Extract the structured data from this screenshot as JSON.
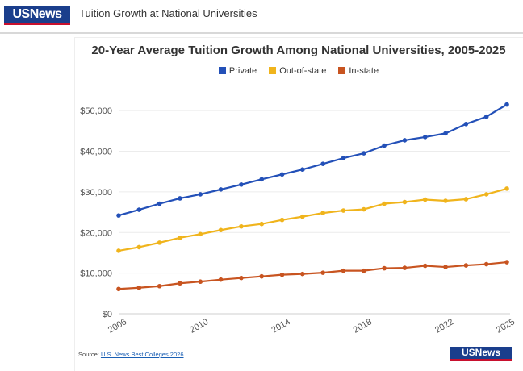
{
  "header": {
    "logo_text": "USNews",
    "title": "Tuition Growth at National Universities"
  },
  "chart_data": {
    "type": "line",
    "title": "20-Year Average Tuition Growth Among National Universities, 2005-2025",
    "xlabel": "",
    "ylabel": "",
    "x": [
      2006,
      2007,
      2008,
      2009,
      2010,
      2011,
      2012,
      2013,
      2014,
      2015,
      2016,
      2017,
      2018,
      2019,
      2020,
      2021,
      2022,
      2023,
      2024,
      2025
    ],
    "xlim": [
      2006,
      2025
    ],
    "ylim": [
      0,
      55000
    ],
    "x_ticks": [
      "2006",
      "2010",
      "2014",
      "2018",
      "2022",
      "2025"
    ],
    "y_ticks": [
      "$0",
      "$10,000",
      "$20,000",
      "$30,000",
      "$40,000",
      "$50,000"
    ],
    "grid": true,
    "legend_position": "top",
    "series": [
      {
        "name": "Private",
        "color": "#2350b8",
        "values": [
          24200,
          25600,
          27100,
          28400,
          29400,
          30600,
          31800,
          33100,
          34300,
          35500,
          36900,
          38300,
          39500,
          41400,
          42700,
          43500,
          44400,
          46700,
          48500,
          51500
        ]
      },
      {
        "name": "Out-of-state",
        "color": "#f0b41c",
        "values": [
          15500,
          16400,
          17500,
          18700,
          19600,
          20600,
          21500,
          22100,
          23100,
          23900,
          24800,
          25400,
          25700,
          27100,
          27500,
          28100,
          27800,
          28200,
          29400,
          30800
        ]
      },
      {
        "name": "In-state",
        "color": "#c85420",
        "values": [
          6100,
          6400,
          6800,
          7500,
          7900,
          8400,
          8800,
          9200,
          9600,
          9800,
          10100,
          10600,
          10600,
          11200,
          11300,
          11800,
          11500,
          11900,
          12200,
          12700
        ]
      }
    ]
  },
  "footer": {
    "source_prefix": "Source: ",
    "source_link": "U.S. News Best Colleges 2026",
    "logo_text": "USNews"
  }
}
